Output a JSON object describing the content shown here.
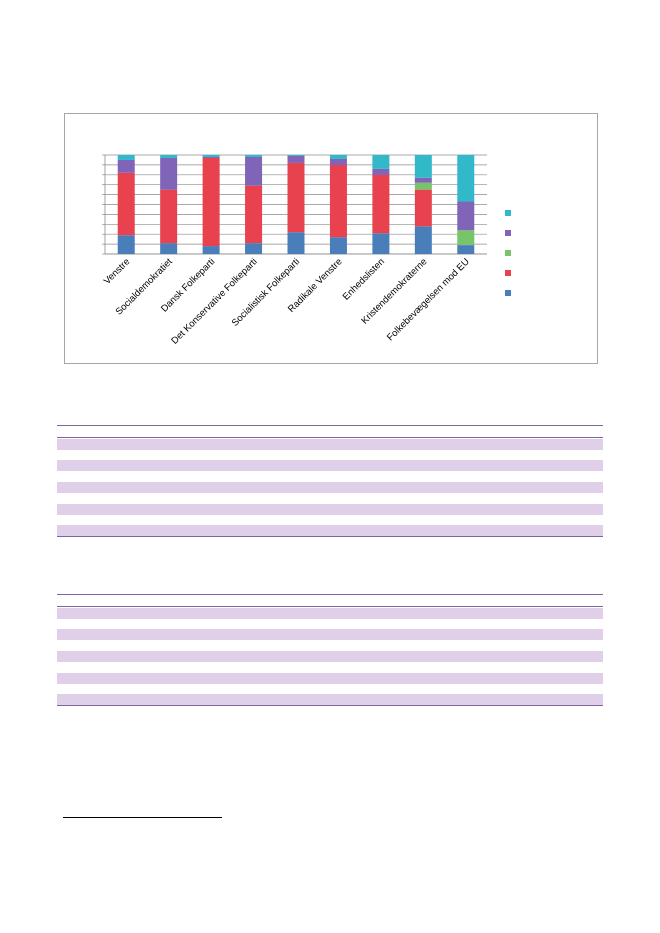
{
  "chart_data": {
    "type": "bar",
    "stacked": true,
    "percent_stacked": true,
    "categories": [
      "Venstre",
      "Socialdemokratiet",
      "Dansk Folkeparti",
      "Det Konservative Folkeparti",
      "Socialistisk Folkeparti",
      "Radikale Venstre",
      "Enhedslisten",
      "Kristendemokraterne",
      "Folkebevægelsen mod EU"
    ],
    "series": [
      {
        "color": "#4a7ebb",
        "values": [
          19,
          11,
          8,
          11,
          22,
          17,
          21,
          28,
          9
        ]
      },
      {
        "color": "#e8424f",
        "values": [
          63,
          54,
          89,
          58,
          70,
          73,
          59,
          37,
          0
        ]
      },
      {
        "color": "#79c36a",
        "values": [
          0,
          0,
          0,
          0,
          0,
          0,
          0,
          7,
          15
        ]
      },
      {
        "color": "#8064b8",
        "values": [
          13,
          32,
          1,
          29,
          7,
          6,
          6,
          5,
          29
        ]
      },
      {
        "color": "#31b8c9",
        "values": [
          5,
          3,
          2,
          2,
          1,
          4,
          14,
          23,
          47
        ]
      }
    ],
    "ylim": [
      0,
      100
    ],
    "y_ticks": 11,
    "grid": true,
    "legend_position": "right"
  },
  "tables": [
    {
      "rows": 10
    },
    {
      "rows": 10
    }
  ]
}
